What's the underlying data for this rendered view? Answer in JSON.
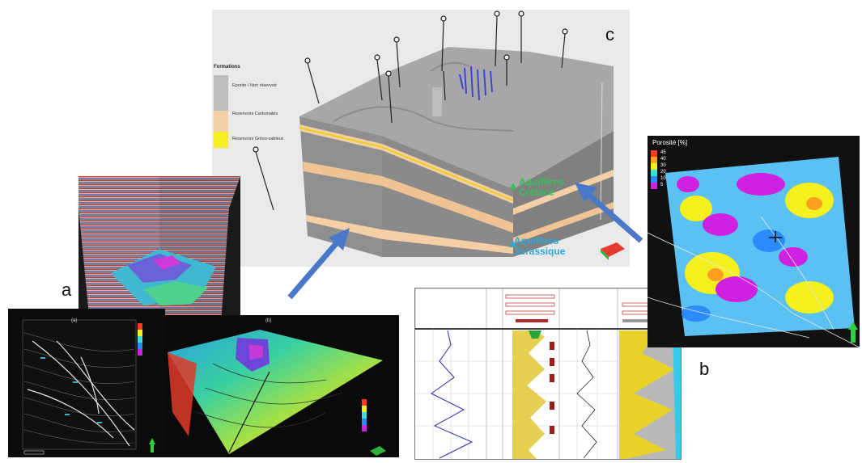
{
  "labels": {
    "a": "a",
    "b": "b",
    "c": "c"
  },
  "model3d": {
    "legend_title": "Formations",
    "legend_items": [
      {
        "label": "Eponte / Non réservoir",
        "color": "#bdbdbd"
      },
      {
        "label": "Reservoirs Carbonatés",
        "color": "#f4cfa6"
      },
      {
        "label": "Reservoirs Grèso-sableux",
        "color": "#f7ef1f"
      }
    ],
    "aquifer_cretace": {
      "line1": "Aquifères",
      "line2": "Crétacé",
      "color": "#34c15a"
    },
    "aquifer_jurassique": {
      "line1": "Aquifères",
      "line2": "Jurassique",
      "color": "#2ea6d8"
    }
  },
  "map_a": {
    "title": "(a)"
  },
  "map_b": {
    "title": "(b)"
  },
  "porosity": {
    "title": "Porosité [%]",
    "scale": [
      "45",
      "40",
      "30",
      "20",
      "10",
      "5"
    ],
    "colors": [
      "#ff3b1f",
      "#ffa21f",
      "#f4f01e",
      "#38e0d8",
      "#2a8cff",
      "#d020e0"
    ]
  }
}
